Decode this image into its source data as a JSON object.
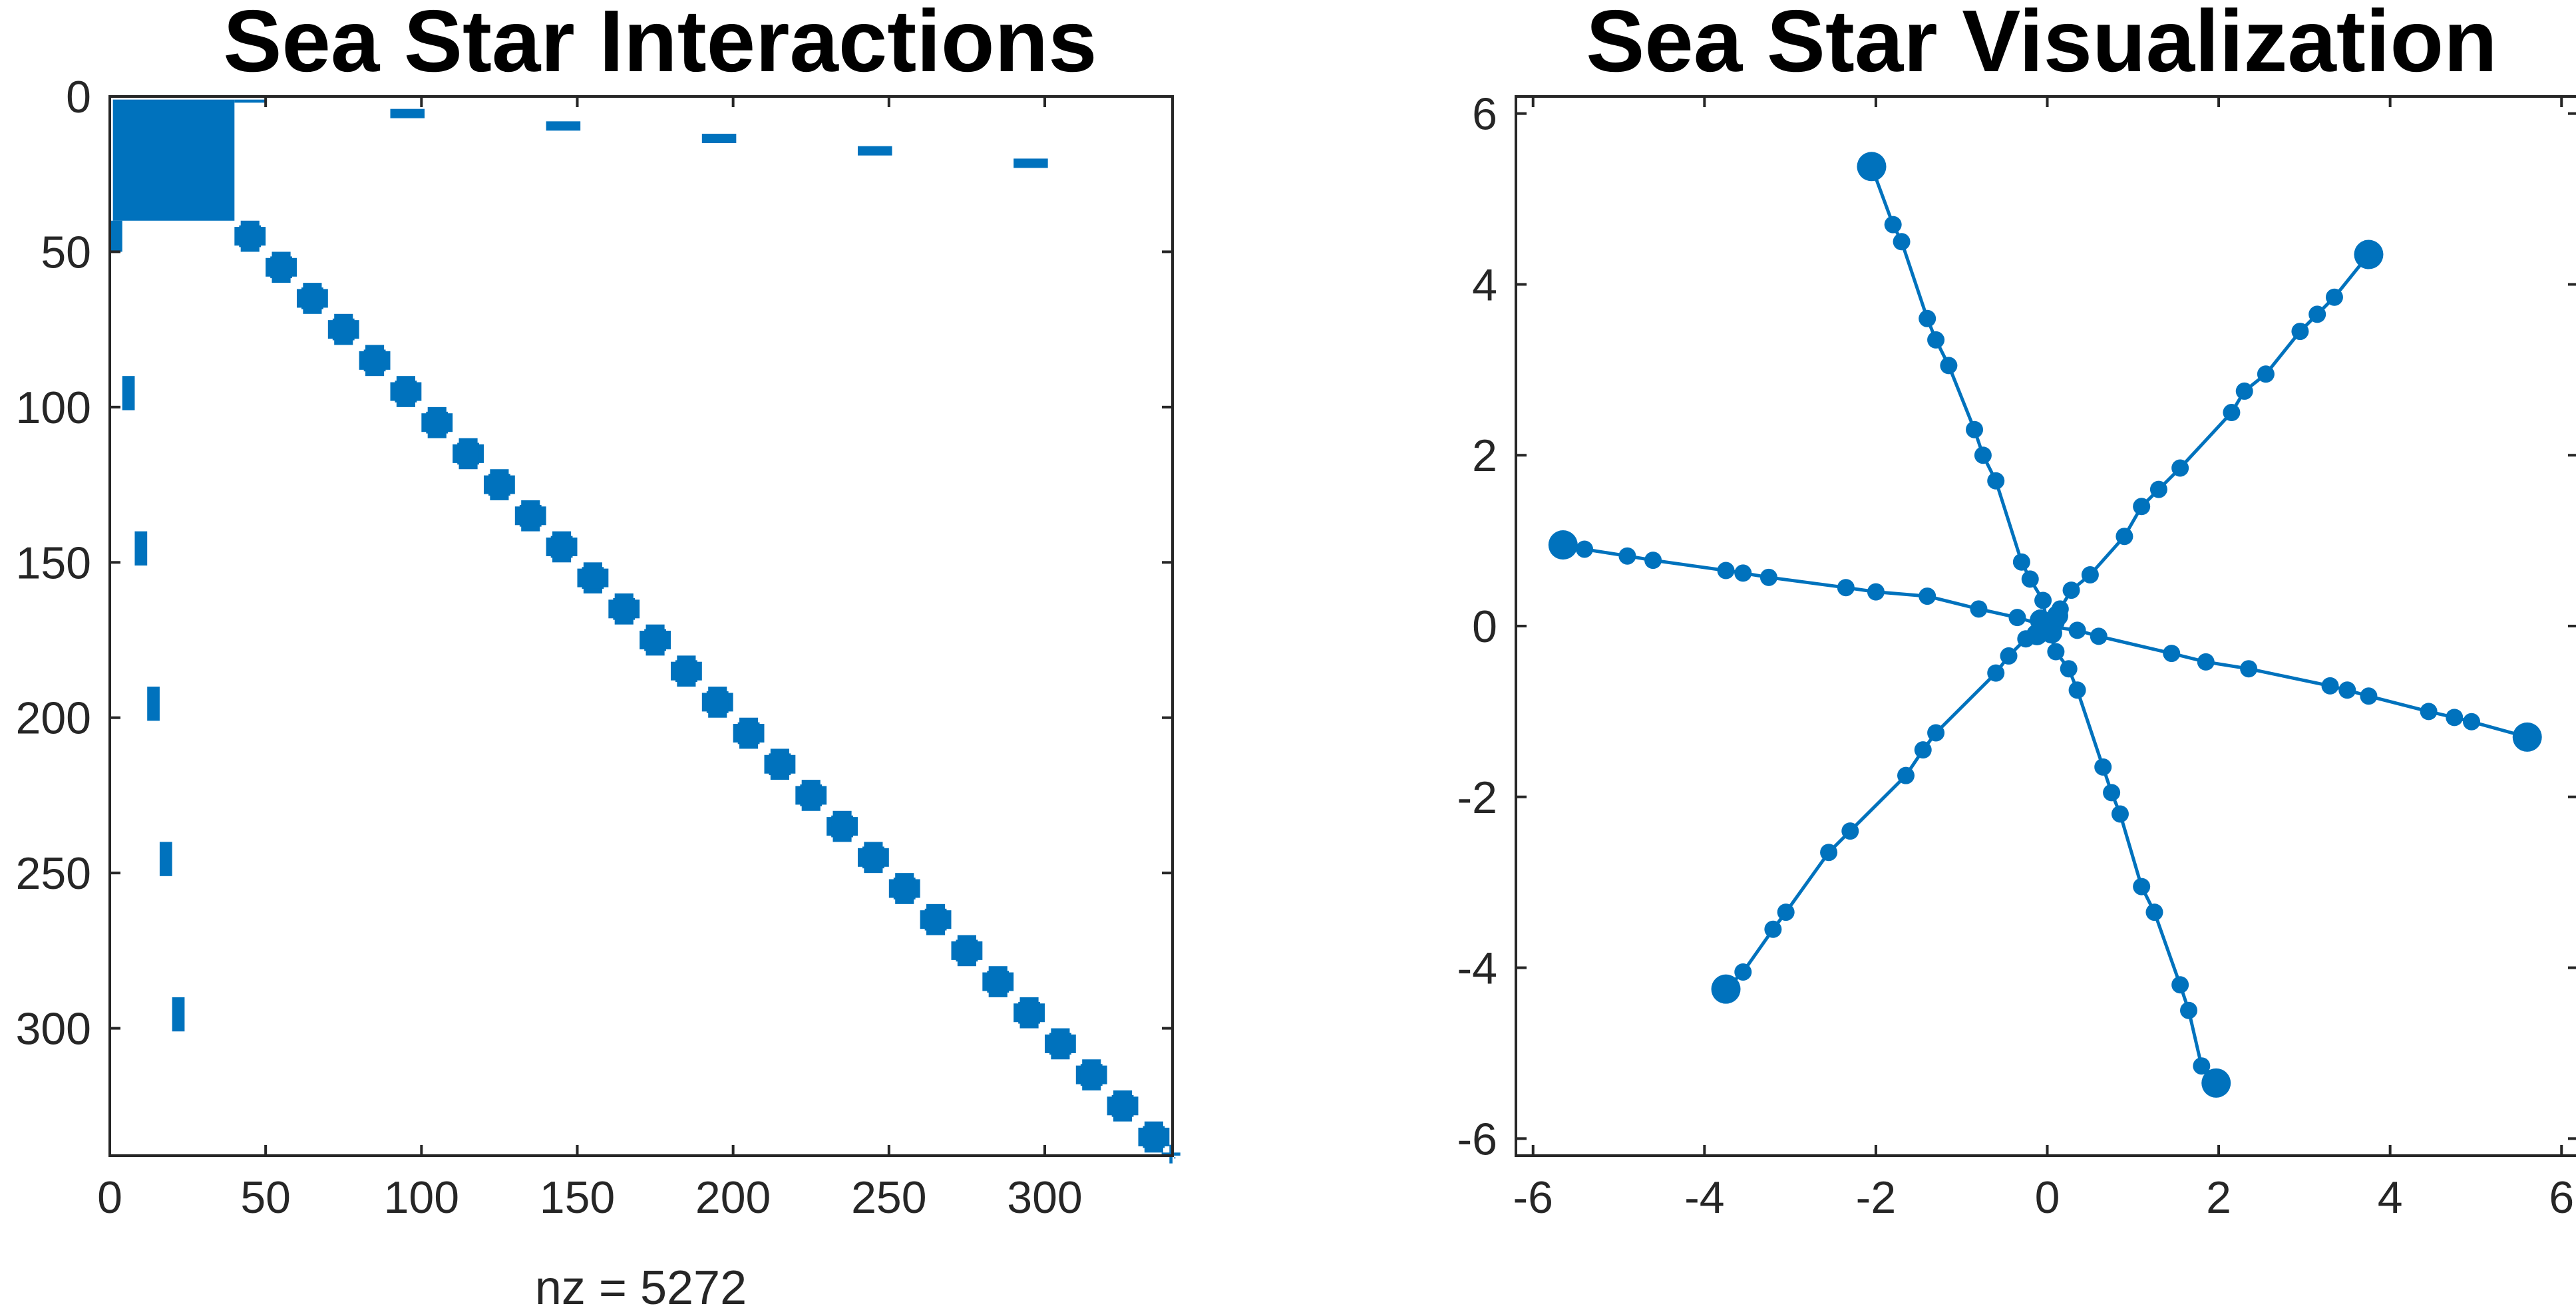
{
  "chart_data": [
    {
      "type": "heatmap",
      "title": "Sea Star Interactions",
      "xlabel": "nz = 5272",
      "ylabel": "",
      "xlim": [
        0,
        341
      ],
      "ylim": [
        0,
        341
      ],
      "y_reversed": true,
      "xticks": [
        0,
        50,
        100,
        150,
        200,
        250,
        300
      ],
      "yticks": [
        0,
        50,
        100,
        150,
        200,
        250,
        300
      ],
      "xtick_labels": [
        "0",
        "50",
        "100",
        "150",
        "200",
        "250",
        "300"
      ],
      "ytick_labels": [
        "0",
        "50",
        "100",
        "150",
        "200",
        "250",
        "300"
      ],
      "color": "#0072BD",
      "hub_block": {
        "row_range": [
          1,
          40
        ],
        "col_range": [
          1,
          40
        ]
      },
      "hub_row_segments": [
        {
          "row_range": [
            1,
            2
          ],
          "col_range": [
            40,
            50
          ]
        },
        {
          "row_range": [
            4,
            7
          ],
          "col_range": [
            90,
            101
          ]
        },
        {
          "row_range": [
            8,
            11
          ],
          "col_range": [
            140,
            151
          ]
        },
        {
          "row_range": [
            12,
            15
          ],
          "col_range": [
            190,
            201
          ]
        },
        {
          "row_range": [
            16,
            19
          ],
          "col_range": [
            240,
            251
          ]
        },
        {
          "row_range": [
            20,
            23
          ],
          "col_range": [
            290,
            301
          ]
        }
      ],
      "hub_col_segments": [
        {
          "row_range": [
            40,
            50
          ],
          "col_range": [
            0,
            4
          ]
        },
        {
          "row_range": [
            90,
            101
          ],
          "col_range": [
            4,
            8
          ]
        },
        {
          "row_range": [
            140,
            151
          ],
          "col_range": [
            8,
            12
          ]
        },
        {
          "row_range": [
            190,
            201
          ],
          "col_range": [
            12,
            16
          ]
        },
        {
          "row_range": [
            240,
            251
          ],
          "col_range": [
            16,
            20
          ]
        },
        {
          "row_range": [
            290,
            301
          ],
          "col_range": [
            20,
            24
          ]
        }
      ],
      "diagonal_blocks": {
        "start": 40,
        "end": 341,
        "block_size": 10,
        "block_nnz_width": 6
      }
    },
    {
      "type": "scatter",
      "title": "Sea Star Visualization",
      "xlabel": "",
      "ylabel": "",
      "xlim": [
        -6.2,
        6.2
      ],
      "ylim": [
        -6.2,
        6.2
      ],
      "xticks": [
        -6,
        -4,
        -2,
        0,
        2,
        4,
        6
      ],
      "yticks": [
        -6,
        -4,
        -2,
        0,
        2,
        4,
        6
      ],
      "xtick_labels": [
        "-6",
        "-4",
        "-2",
        "0",
        "2",
        "4",
        "6"
      ],
      "ytick_labels": [
        "-6",
        "-4",
        "-2",
        "0",
        "2",
        "4",
        "6"
      ],
      "color": "#0072BD",
      "arms": [
        {
          "tip": [
            3.75,
            4.35
          ],
          "points": [
            [
              0.15,
              0.2
            ],
            [
              0.28,
              0.42
            ],
            [
              0.5,
              0.6
            ],
            [
              0.9,
              1.05
            ],
            [
              1.1,
              1.4
            ],
            [
              1.3,
              1.6
            ],
            [
              1.55,
              1.85
            ],
            [
              2.15,
              2.5
            ],
            [
              2.3,
              2.75
            ],
            [
              2.55,
              2.95
            ],
            [
              2.95,
              3.45
            ],
            [
              3.15,
              3.65
            ],
            [
              3.35,
              3.85
            ],
            [
              3.75,
              4.35
            ]
          ]
        },
        {
          "tip": [
            -2.05,
            5.38
          ],
          "points": [
            [
              -0.05,
              0.3
            ],
            [
              -0.2,
              0.55
            ],
            [
              -0.3,
              0.75
            ],
            [
              -0.6,
              1.7
            ],
            [
              -0.75,
              2.0
            ],
            [
              -0.85,
              2.3
            ],
            [
              -1.15,
              3.05
            ],
            [
              -1.3,
              3.35
            ],
            [
              -1.4,
              3.6
            ],
            [
              -1.7,
              4.5
            ],
            [
              -1.8,
              4.7
            ],
            [
              -2.05,
              5.38
            ]
          ]
        },
        {
          "tip": [
            -5.65,
            0.95
          ],
          "points": [
            [
              -0.35,
              0.1
            ],
            [
              -0.8,
              0.2
            ],
            [
              -1.4,
              0.35
            ],
            [
              -2.0,
              0.4
            ],
            [
              -2.35,
              0.45
            ],
            [
              -3.25,
              0.57
            ],
            [
              -3.55,
              0.62
            ],
            [
              -3.75,
              0.65
            ],
            [
              -4.6,
              0.77
            ],
            [
              -4.9,
              0.82
            ],
            [
              -5.4,
              0.9
            ],
            [
              -5.65,
              0.95
            ]
          ]
        },
        {
          "tip": [
            -3.75,
            -4.25
          ],
          "points": [
            [
              -0.25,
              -0.15
            ],
            [
              -0.45,
              -0.35
            ],
            [
              -0.6,
              -0.55
            ],
            [
              -1.3,
              -1.25
            ],
            [
              -1.45,
              -1.45
            ],
            [
              -1.65,
              -1.75
            ],
            [
              -2.3,
              -2.4
            ],
            [
              -2.55,
              -2.65
            ],
            [
              -3.05,
              -3.35
            ],
            [
              -3.2,
              -3.55
            ],
            [
              -3.55,
              -4.05
            ],
            [
              -3.75,
              -4.25
            ]
          ]
        },
        {
          "tip": [
            1.97,
            -5.35
          ],
          "points": [
            [
              0.1,
              -0.3
            ],
            [
              0.25,
              -0.5
            ],
            [
              0.35,
              -0.75
            ],
            [
              0.65,
              -1.65
            ],
            [
              0.75,
              -1.95
            ],
            [
              0.85,
              -2.2
            ],
            [
              1.1,
              -3.05
            ],
            [
              1.25,
              -3.35
            ],
            [
              1.55,
              -4.2
            ],
            [
              1.65,
              -4.5
            ],
            [
              1.8,
              -5.15
            ],
            [
              1.97,
              -5.35
            ]
          ]
        },
        {
          "tip": [
            5.6,
            -1.3
          ],
          "points": [
            [
              0.35,
              -0.05
            ],
            [
              0.6,
              -0.12
            ],
            [
              1.45,
              -0.32
            ],
            [
              1.85,
              -0.42
            ],
            [
              2.35,
              -0.5
            ],
            [
              3.3,
              -0.7
            ],
            [
              3.5,
              -0.75
            ],
            [
              3.75,
              -0.82
            ],
            [
              4.45,
              -1.0
            ],
            [
              4.75,
              -1.07
            ],
            [
              4.95,
              -1.12
            ],
            [
              5.6,
              -1.3
            ]
          ]
        }
      ]
    }
  ]
}
